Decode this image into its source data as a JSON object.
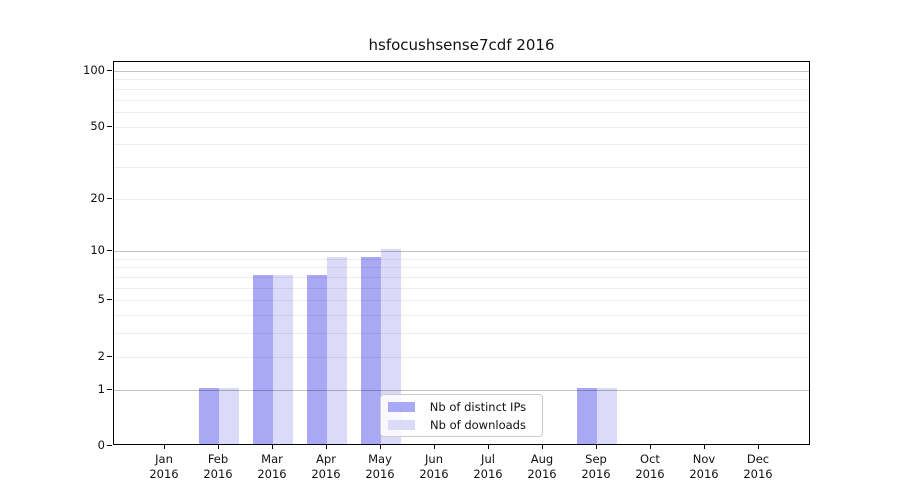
{
  "title": "hsfocushsense7cdf 2016",
  "chart_data": {
    "type": "bar",
    "title": "hsfocushsense7cdf 2016",
    "categories": [
      "Jan 2016",
      "Feb 2016",
      "Mar 2016",
      "Apr 2016",
      "May 2016",
      "Jun 2016",
      "Jul 2016",
      "Aug 2016",
      "Sep 2016",
      "Oct 2016",
      "Nov 2016",
      "Dec 2016"
    ],
    "series": [
      {
        "name": "Nb of distinct IPs",
        "color": "#a8a8f5",
        "values": [
          0,
          1,
          7,
          7,
          9,
          0,
          0,
          0,
          1,
          0,
          0,
          0
        ]
      },
      {
        "name": "Nb of downloads",
        "color": "#dbdbf9",
        "values": [
          0,
          1,
          7,
          9,
          10,
          0,
          0,
          0,
          1,
          0,
          0,
          0
        ]
      }
    ],
    "yscale": "log1p",
    "ylim": [
      0,
      100
    ],
    "yticks": [
      0,
      1,
      2,
      5,
      10,
      20,
      50,
      100
    ],
    "grid": {
      "on": true,
      "major_lines": [
        1,
        10,
        100
      ],
      "minor_lines": [
        2,
        3,
        4,
        5,
        6,
        7,
        8,
        9,
        20,
        30,
        40,
        50,
        60,
        70,
        80,
        90
      ]
    },
    "legend": {
      "position": "lower center",
      "entries": [
        "Nb of distinct IPs",
        "Nb of downloads"
      ]
    },
    "xlabel": "",
    "ylabel": ""
  },
  "colors": {
    "bar_distinct_ips": "#a8a8f5",
    "bar_downloads": "#dbdbf9",
    "grid_major": "#c2c2c2",
    "grid_minor": "#ededed",
    "axis": "#000000",
    "background": "#ffffff"
  }
}
